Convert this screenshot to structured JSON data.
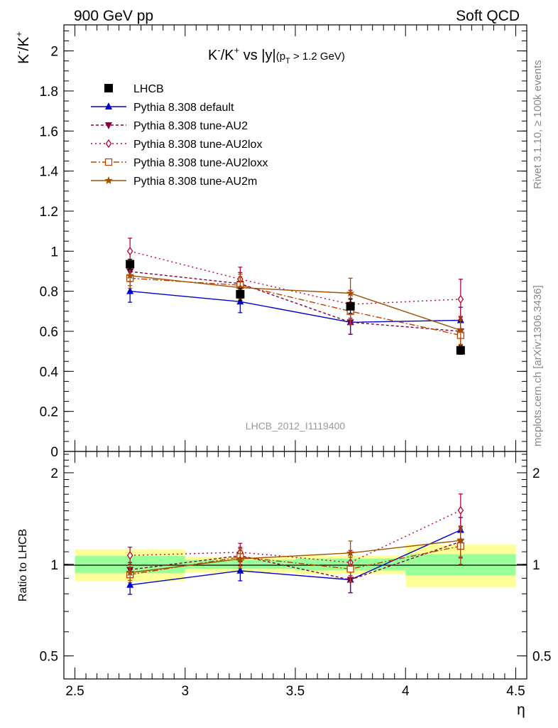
{
  "header": {
    "left": "900 GeV pp",
    "right": "Soft QCD",
    "side_top": "Rivet 3.1.10, ≥ 100k events",
    "side_bottom": "mcplots.cern.ch [arXiv:1306.3436]"
  },
  "chart_data": {
    "type": "line",
    "title_main": "K",
    "title_sup1": "-",
    "title_mid": "/K",
    "title_sup2": "+",
    "title_tail": " vs |y|",
    "title_paren_open": "(p",
    "title_sub": "T",
    "title_paren_close": " > 1.2 GeV)",
    "analysis_id": "LHCB_2012_I1119400",
    "ylabel_main": "K",
    "ylabel_sup1": "-",
    "ylabel_mid": "/K",
    "ylabel_sup2": "+",
    "ylabel_ratio": "Ratio to LHCB",
    "xlabel": "η",
    "xlim": [
      2.45,
      4.55
    ],
    "ylim": [
      0,
      2.13
    ],
    "ratio_ylim": [
      0.42,
      2.35
    ],
    "x_ticks": [
      "2.5",
      "3",
      "3.5",
      "4",
      "4.5"
    ],
    "y_ticks": [
      "0",
      "0.2",
      "0.4",
      "0.6",
      "0.8",
      "1",
      "1.2",
      "1.4",
      "1.6",
      "1.8",
      "2"
    ],
    "ratio_ticks": [
      "0.5",
      "1",
      "2"
    ],
    "x": [
      2.75,
      3.25,
      3.75,
      4.25
    ],
    "bins": [
      [
        2.5,
        3.0
      ],
      [
        3.0,
        3.5
      ],
      [
        3.5,
        4.0
      ],
      [
        4.0,
        4.5
      ]
    ],
    "data": {
      "name": "LHCB",
      "values": [
        0.935,
        0.785,
        0.725,
        0.505
      ],
      "errors": [
        0.025,
        0.03,
        0.035,
        0.02
      ],
      "ratio_green": [
        0.065,
        0.035,
        0.045,
        0.08
      ],
      "ratio_yellow": [
        0.12,
        0.06,
        0.07,
        0.16
      ]
    },
    "series": [
      {
        "name": "Pythia 8.308 default",
        "color": "#0000cc",
        "dash": "",
        "marker": "triangle-up",
        "values": [
          0.8,
          0.748,
          0.645,
          0.655
        ],
        "errors": [
          0.055,
          0.055,
          0.06,
          0.065
        ]
      },
      {
        "name": "Pythia 8.308 tune-AU2",
        "color": "#800040",
        "dash": "4,3",
        "marker": "triangle-down",
        "values": [
          0.898,
          0.838,
          0.645,
          0.6
        ],
        "errors": [
          0.05,
          0.055,
          0.06,
          0.07
        ]
      },
      {
        "name": "Pythia 8.308 tune-AU2lox",
        "color": "#c00030",
        "dash": "2,4",
        "marker": "diamond-open",
        "values": [
          1.0,
          0.86,
          0.735,
          0.76
        ],
        "errors": [
          0.065,
          0.06,
          0.07,
          0.1
        ]
      },
      {
        "name": "Pythia 8.308 tune-AU2loxx",
        "color": "#c04000",
        "dash": "8,3,2,3",
        "marker": "square-open",
        "values": [
          0.865,
          0.83,
          0.7,
          0.58
        ],
        "errors": [
          0.05,
          0.055,
          0.065,
          0.075
        ]
      },
      {
        "name": "Pythia 8.308 tune-AU2m",
        "color": "#a05000",
        "dash": "",
        "marker": "star",
        "values": [
          0.878,
          0.818,
          0.79,
          0.605
        ],
        "errors": [
          0.05,
          0.055,
          0.075,
          0.07
        ]
      }
    ]
  }
}
